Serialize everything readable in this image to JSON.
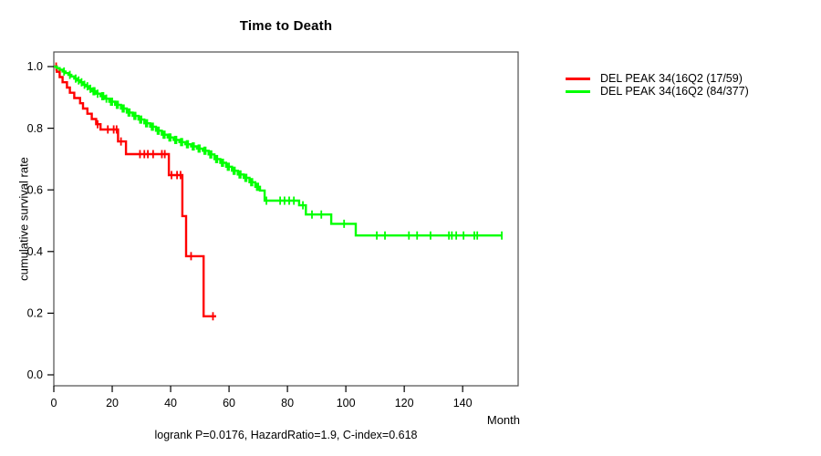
{
  "chart_data": {
    "type": "line",
    "subtype": "kaplan-meier-step",
    "title": "Time to Death",
    "xlabel": "Month",
    "ylabel": "cumulative survival rate",
    "annotation": "logrank P=0.0176, HazardRatio=1.9, C-index=0.618",
    "grid": false,
    "legend_position": "right-outside",
    "x_ticks": [
      0,
      20,
      40,
      60,
      80,
      100,
      120,
      140
    ],
    "y_tick_labels": [
      "0.0",
      "0.2",
      "0.4",
      "0.6",
      "0.8",
      "1.0"
    ],
    "xlim": [
      0,
      159
    ],
    "ylim": [
      0,
      1
    ],
    "series": [
      {
        "name": "DEL PEAK 34(16Q2 (17/59)",
        "color": "#ff0000",
        "points": [
          [
            0,
            1.0
          ],
          [
            1,
            0.983
          ],
          [
            2,
            0.966
          ],
          [
            3,
            0.949
          ],
          [
            4.5,
            0.932
          ],
          [
            5.5,
            0.915
          ],
          [
            7,
            0.898
          ],
          [
            9,
            0.881
          ],
          [
            10,
            0.864
          ],
          [
            11.5,
            0.847
          ],
          [
            13,
            0.83
          ],
          [
            14.5,
            0.813
          ],
          [
            16,
            0.796
          ],
          [
            22,
            0.757
          ],
          [
            24.7,
            0.716
          ],
          [
            39.4,
            0.648
          ],
          [
            44,
            0.515
          ],
          [
            45.3,
            0.385
          ],
          [
            51.3,
            0.19
          ],
          [
            55.6,
            0.19
          ]
        ],
        "censor_times": [
          0.8,
          15,
          18.5,
          20.5,
          21.5,
          23,
          29.5,
          31,
          32.2,
          34,
          37,
          38,
          40.3,
          42.2,
          43.4,
          47,
          54.5
        ]
      },
      {
        "name": "DEL PEAK 34(16Q2 (84/377)",
        "color": "#00ff00",
        "points": [
          [
            0,
            1.0
          ],
          [
            1,
            0.995
          ],
          [
            2,
            0.99
          ],
          [
            3,
            0.984
          ],
          [
            4,
            0.979
          ],
          [
            5,
            0.973
          ],
          [
            6,
            0.968
          ],
          [
            7,
            0.961
          ],
          [
            8,
            0.955
          ],
          [
            9,
            0.949
          ],
          [
            10,
            0.941
          ],
          [
            11,
            0.936
          ],
          [
            12,
            0.928
          ],
          [
            13,
            0.92
          ],
          [
            14.5,
            0.912
          ],
          [
            16,
            0.904
          ],
          [
            17.5,
            0.896
          ],
          [
            19,
            0.886
          ],
          [
            21,
            0.876
          ],
          [
            23,
            0.864
          ],
          [
            25,
            0.851
          ],
          [
            27,
            0.84
          ],
          [
            29,
            0.828
          ],
          [
            31,
            0.816
          ],
          [
            33,
            0.805
          ],
          [
            35,
            0.792
          ],
          [
            37,
            0.779
          ],
          [
            39,
            0.77
          ],
          [
            41,
            0.762
          ],
          [
            43,
            0.755
          ],
          [
            45,
            0.748
          ],
          [
            47,
            0.741
          ],
          [
            49,
            0.734
          ],
          [
            51,
            0.727
          ],
          [
            53,
            0.715
          ],
          [
            55,
            0.7
          ],
          [
            57,
            0.688
          ],
          [
            59,
            0.675
          ],
          [
            61,
            0.662
          ],
          [
            63,
            0.65
          ],
          [
            65,
            0.639
          ],
          [
            67,
            0.625
          ],
          [
            69,
            0.61
          ],
          [
            70.6,
            0.598
          ],
          [
            72.2,
            0.565
          ],
          [
            84,
            0.55
          ],
          [
            86.3,
            0.52
          ],
          [
            95,
            0.49
          ],
          [
            103.4,
            0.452
          ],
          [
            153.5,
            0.452
          ]
        ],
        "censor_times": [
          3.5,
          5.5,
          7.5,
          8.5,
          9.5,
          10.5,
          11.5,
          12.5,
          13.5,
          14,
          15,
          16.5,
          17,
          18,
          19.5,
          20,
          21.5,
          22,
          23.5,
          24,
          25.5,
          26,
          27.5,
          28,
          29.5,
          30,
          31.5,
          32,
          33.5,
          34,
          35.5,
          36,
          37.5,
          38,
          39.5,
          40,
          41.5,
          42,
          43.5,
          44,
          45.5,
          46,
          47.5,
          48,
          49.5,
          50,
          51.5,
          52,
          53.5,
          54,
          55.5,
          56,
          57.5,
          58,
          59.5,
          60,
          61.5,
          62,
          63.5,
          64,
          65.5,
          66,
          67.5,
          68,
          69.5,
          70,
          72.8,
          77.5,
          79,
          80.6,
          82.2,
          85.3,
          88.4,
          91.6,
          99.4,
          110.6,
          113.4,
          121.6,
          124.4,
          129,
          135.3,
          136.3,
          137.8,
          140.3,
          144,
          145,
          153.4
        ]
      }
    ]
  }
}
